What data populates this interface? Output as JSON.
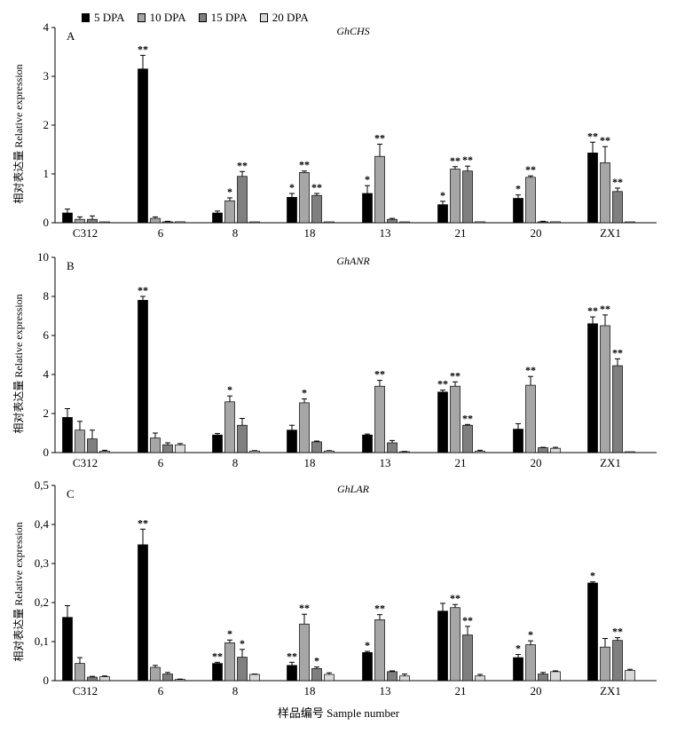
{
  "legend": [
    {
      "name": "5 DPA",
      "color": "#000000"
    },
    {
      "name": "10 DPA",
      "color": "#a6a6a6"
    },
    {
      "name": "15 DPA",
      "color": "#7f7f7f"
    },
    {
      "name": "20 DPA",
      "color": "#d9d9d9"
    }
  ],
  "x_title": "样品编号 Sample number",
  "chart_data": [
    {
      "type": "bar",
      "panel_label": "A",
      "title": "GhCHS",
      "ylabel": "相对表达量 Relative expression",
      "ylim": [
        0,
        4
      ],
      "yticks": [
        "0",
        "1",
        "2",
        "3",
        "4"
      ],
      "categories": [
        "C312",
        "6",
        "8",
        "18",
        "13",
        "21",
        "20",
        "ZX1"
      ],
      "series": [
        {
          "name": "5 DPA",
          "values": [
            0.2,
            3.15,
            0.2,
            0.52,
            0.6,
            0.37,
            0.5,
            1.43
          ],
          "errors": [
            0.08,
            0.28,
            0.04,
            0.08,
            0.16,
            0.07,
            0.07,
            0.22
          ],
          "sig": [
            "",
            "**",
            "",
            "*",
            "*",
            "*",
            "*",
            "**"
          ]
        },
        {
          "name": "10 DPA",
          "values": [
            0.07,
            0.09,
            0.45,
            1.03,
            1.36,
            1.1,
            0.93,
            1.23
          ],
          "errors": [
            0.05,
            0.03,
            0.06,
            0.03,
            0.25,
            0.05,
            0.03,
            0.33
          ],
          "sig": [
            "",
            "",
            "*",
            "**",
            "**",
            "**",
            "**",
            "**"
          ]
        },
        {
          "name": "15 DPA",
          "values": [
            0.07,
            0.02,
            0.95,
            0.56,
            0.07,
            1.06,
            0.02,
            0.64
          ],
          "errors": [
            0.07,
            0.01,
            0.1,
            0.04,
            0.02,
            0.1,
            0.01,
            0.07
          ],
          "sig": [
            "",
            "",
            "**",
            "**",
            "",
            "**",
            "",
            "**"
          ]
        },
        {
          "name": "20 DPA",
          "values": [
            0.0,
            0.02,
            0.01,
            0.01,
            0.01,
            0.02,
            0.02,
            0.0
          ],
          "errors": [
            0,
            0,
            0,
            0,
            0,
            0,
            0,
            0
          ],
          "sig": [
            "",
            "",
            "",
            "",
            "",
            "",
            "",
            ""
          ]
        }
      ]
    },
    {
      "type": "bar",
      "panel_label": "B",
      "title": "GhANR",
      "ylabel": "相对表达量 Relative expression",
      "ylim": [
        0,
        10
      ],
      "yticks": [
        "0",
        "2",
        "4",
        "6",
        "8",
        "10"
      ],
      "categories": [
        "C312",
        "6",
        "8",
        "18",
        "13",
        "21",
        "20",
        "ZX1"
      ],
      "series": [
        {
          "name": "5 DPA",
          "values": [
            1.8,
            7.8,
            0.9,
            1.15,
            0.9,
            3.1,
            1.2,
            6.6
          ],
          "errors": [
            0.45,
            0.2,
            0.08,
            0.25,
            0.05,
            0.1,
            0.28,
            0.35
          ],
          "sig": [
            "",
            "**",
            "",
            "",
            "",
            "**",
            "",
            "**"
          ]
        },
        {
          "name": "10 DPA",
          "values": [
            1.15,
            0.75,
            2.6,
            2.55,
            3.4,
            3.4,
            3.45,
            6.5
          ],
          "errors": [
            0.45,
            0.25,
            0.3,
            0.2,
            0.3,
            0.22,
            0.45,
            0.55
          ],
          "sig": [
            "",
            "",
            "*",
            "*",
            "**",
            "**",
            "**",
            "**"
          ]
        },
        {
          "name": "15 DPA",
          "values": [
            0.7,
            0.4,
            1.4,
            0.55,
            0.5,
            1.4,
            0.25,
            4.45
          ],
          "errors": [
            0.45,
            0.1,
            0.35,
            0.04,
            0.12,
            0.04,
            0.02,
            0.35
          ],
          "sig": [
            "",
            "",
            "",
            "",
            "",
            "**",
            "",
            "**"
          ]
        },
        {
          "name": "20 DPA",
          "values": [
            0.07,
            0.4,
            0.08,
            0.08,
            0.04,
            0.07,
            0.22,
            0.0
          ],
          "errors": [
            0.05,
            0.06,
            0.02,
            0.02,
            0.02,
            0.05,
            0.05,
            0
          ],
          "sig": [
            "",
            "",
            "",
            "",
            "",
            "",
            "",
            ""
          ]
        }
      ]
    },
    {
      "type": "bar",
      "panel_label": "C",
      "title": "GhLAR",
      "ylabel": "相对表达量 Relative expression",
      "ylim": [
        0,
        0.5
      ],
      "yticks": [
        "0",
        "0,1",
        "0,2",
        "0,3",
        "0,4",
        "0,5"
      ],
      "categories": [
        "C312",
        "6",
        "8",
        "18",
        "13",
        "21",
        "20",
        "ZX1"
      ],
      "series": [
        {
          "name": "5 DPA",
          "values": [
            0.162,
            0.348,
            0.044,
            0.039,
            0.072,
            0.178,
            0.059,
            0.25
          ],
          "errors": [
            0.03,
            0.04,
            0.003,
            0.008,
            0.003,
            0.02,
            0.008,
            0.003
          ],
          "sig": [
            "",
            "**",
            "**",
            "**",
            "*",
            "",
            "*",
            "*"
          ]
        },
        {
          "name": "10 DPA",
          "values": [
            0.044,
            0.034,
            0.097,
            0.145,
            0.156,
            0.187,
            0.092,
            0.086
          ],
          "errors": [
            0.015,
            0.005,
            0.007,
            0.025,
            0.013,
            0.008,
            0.01,
            0.022
          ],
          "sig": [
            "",
            "",
            "*",
            "**",
            "**",
            "**",
            "*",
            ""
          ]
        },
        {
          "name": "15 DPA",
          "values": [
            0.009,
            0.017,
            0.06,
            0.031,
            0.023,
            0.117,
            0.017,
            0.103
          ],
          "errors": [
            0.002,
            0.004,
            0.02,
            0.004,
            0.002,
            0.022,
            0.004,
            0.007
          ],
          "sig": [
            "",
            "",
            "*",
            "*",
            "",
            "**",
            "",
            "**"
          ]
        },
        {
          "name": "20 DPA",
          "values": [
            0.01,
            0.003,
            0.016,
            0.016,
            0.012,
            0.012,
            0.023,
            0.026
          ],
          "errors": [
            0.002,
            0.001,
            0.001,
            0.004,
            0.005,
            0.004,
            0.002,
            0.003
          ],
          "sig": [
            "",
            "",
            "",
            "",
            "",
            "",
            "",
            ""
          ]
        }
      ]
    }
  ]
}
